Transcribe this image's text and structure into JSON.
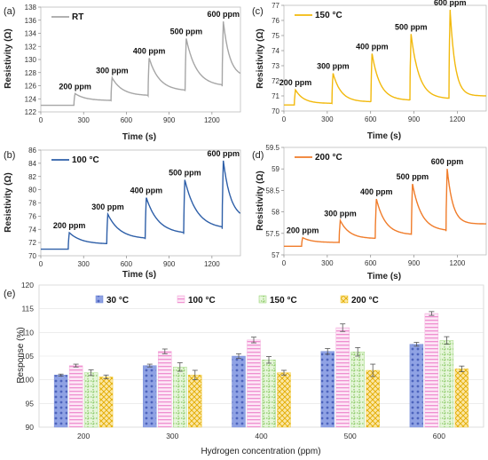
{
  "panels": [
    {
      "label": "(a)",
      "legend": "RT",
      "color": "#a6a6a6",
      "xlabel": "Time (s)",
      "ylabel": "Resistivity (Ω)",
      "xlim": [
        0,
        1400
      ],
      "ylim": [
        122,
        138
      ],
      "xticks": [
        0,
        300,
        600,
        900,
        1200
      ],
      "yticks": [
        122,
        124,
        126,
        128,
        130,
        132,
        134,
        136,
        138
      ],
      "baseline": 123,
      "recovery": 127.3,
      "peaks": [
        {
          "t": 240,
          "v": 124.8
        },
        {
          "t": 500,
          "v": 127.2
        },
        {
          "t": 760,
          "v": 130.2
        },
        {
          "t": 1020,
          "v": 133.2
        },
        {
          "t": 1280,
          "v": 135.8
        }
      ],
      "annotations": [
        "200 ppm",
        "300 ppm",
        "400 ppm",
        "500 ppm",
        "600 ppm"
      ]
    },
    {
      "label": "(b)",
      "legend": "100 °C",
      "color": "#2e5fa8",
      "xlabel": "Time (s)",
      "ylabel": "Resistivity (Ω)",
      "xlim": [
        0,
        1400
      ],
      "ylim": [
        70,
        86
      ],
      "xticks": [
        0,
        300,
        600,
        900,
        1200
      ],
      "yticks": [
        70,
        72,
        74,
        76,
        78,
        80,
        82,
        84,
        86
      ],
      "baseline": 71,
      "recovery": 75.5,
      "peaks": [
        {
          "t": 200,
          "v": 73.5
        },
        {
          "t": 470,
          "v": 76.3
        },
        {
          "t": 740,
          "v": 78.8
        },
        {
          "t": 1010,
          "v": 81.5
        },
        {
          "t": 1280,
          "v": 84.4
        }
      ],
      "annotations": [
        "200 ppm",
        "300 ppm",
        "400 ppm",
        "500 ppm",
        "600 ppm"
      ]
    },
    {
      "label": "(c)",
      "legend": "150 °C",
      "color": "#f2b90c",
      "xlabel": "Time (s)",
      "ylabel": "Resistivity (Ω)",
      "xlim": [
        0,
        1400
      ],
      "ylim": [
        70,
        77
      ],
      "xticks": [
        0,
        300,
        600,
        900,
        1200
      ],
      "yticks": [
        70,
        71,
        72,
        73,
        74,
        75,
        76,
        77
      ],
      "baseline": 70.4,
      "recovery": 71.0,
      "peaks": [
        {
          "t": 80,
          "v": 71.4
        },
        {
          "t": 340,
          "v": 72.5
        },
        {
          "t": 610,
          "v": 73.8
        },
        {
          "t": 880,
          "v": 75.1
        },
        {
          "t": 1150,
          "v": 76.7
        }
      ],
      "annotations": [
        "200 ppm",
        "300 ppm",
        "400 ppm",
        "500 ppm",
        "600 ppm"
      ]
    },
    {
      "label": "(d)",
      "legend": "200 °C",
      "color": "#f07c2a",
      "xlabel": "Time (s)",
      "ylabel": "Resistivity (Ω)",
      "xlim": [
        0,
        1400
      ],
      "ylim": [
        57,
        59.5
      ],
      "xticks": [
        0,
        300,
        600,
        900,
        1200
      ],
      "yticks": [
        57,
        57.5,
        58,
        58.5,
        59,
        59.5
      ],
      "baseline": 57.2,
      "recovery": 57.72,
      "peaks": [
        {
          "t": 130,
          "v": 57.4
        },
        {
          "t": 390,
          "v": 57.8
        },
        {
          "t": 640,
          "v": 58.3
        },
        {
          "t": 890,
          "v": 58.65
        },
        {
          "t": 1130,
          "v": 59.0
        }
      ],
      "annotations": [
        "200 ppm",
        "300 ppm",
        "400 ppm",
        "500 ppm",
        "600 ppm"
      ]
    }
  ],
  "chart_data": [
    {
      "type": "line",
      "title": "(a)",
      "xlabel": "Time (s)",
      "ylabel": "Resistivity (Ω)",
      "series": [
        {
          "name": "RT",
          "x": [
            0,
            230,
            240,
            480,
            500,
            750,
            760,
            1010,
            1020,
            1270,
            1280,
            1400
          ],
          "y": [
            123,
            123.2,
            124.8,
            125.2,
            127.2,
            125.8,
            130.2,
            126.5,
            133.2,
            126.9,
            135.8,
            127.3
          ]
        }
      ]
    },
    {
      "type": "line",
      "title": "(b)",
      "xlabel": "Time (s)",
      "ylabel": "Resistivity (Ω)",
      "series": [
        {
          "name": "100 °C",
          "x": [
            0,
            190,
            200,
            460,
            470,
            730,
            740,
            1000,
            1010,
            1270,
            1280,
            1400
          ],
          "y": [
            71,
            71.2,
            73.5,
            72.6,
            76.3,
            73.2,
            78.8,
            73.8,
            81.5,
            74.4,
            84.4,
            75.5
          ]
        }
      ]
    },
    {
      "type": "line",
      "title": "(c)",
      "xlabel": "Time (s)",
      "ylabel": "Resistivity (Ω)",
      "series": [
        {
          "name": "150 °C",
          "x": [
            0,
            70,
            80,
            330,
            340,
            600,
            610,
            870,
            880,
            1140,
            1150,
            1400
          ],
          "y": [
            70.4,
            70.5,
            71.4,
            70.7,
            72.5,
            70.8,
            73.8,
            70.9,
            75.1,
            71.0,
            76.7,
            71.0
          ]
        }
      ]
    },
    {
      "type": "line",
      "title": "(d)",
      "xlabel": "Time (s)",
      "ylabel": "Resistivity (Ω)",
      "series": [
        {
          "name": "200 °C",
          "x": [
            0,
            120,
            130,
            380,
            390,
            630,
            640,
            880,
            890,
            1120,
            1130,
            1400
          ],
          "y": [
            57.2,
            57.2,
            57.4,
            57.3,
            57.8,
            57.5,
            58.3,
            57.55,
            58.65,
            57.6,
            59.0,
            57.72
          ]
        }
      ]
    },
    {
      "type": "bar",
      "title": "(e)",
      "xlabel": "Hydrogen concentration (ppm)",
      "ylabel": "Response (%)",
      "ylim": [
        90,
        120
      ],
      "yticks": [
        90,
        95,
        100,
        105,
        110,
        115,
        120
      ],
      "categories": [
        "200",
        "300",
        "400",
        "500",
        "600"
      ],
      "series": [
        {
          "name": "30 °C",
          "color": "#6f86d6",
          "values": [
            101.0,
            103.0,
            105.0,
            106.0,
            107.5
          ],
          "errors": [
            0.2,
            0.3,
            0.5,
            0.6,
            0.4
          ]
        },
        {
          "name": "100 °C",
          "color": "#f2a0d6",
          "values": [
            103.0,
            106.0,
            108.4,
            111.0,
            114.0
          ],
          "errors": [
            0.3,
            0.5,
            0.6,
            0.8,
            0.4
          ]
        },
        {
          "name": "150 °C",
          "color": "#8fd06a",
          "values": [
            101.5,
            102.7,
            104.2,
            105.9,
            108.3
          ],
          "errors": [
            0.6,
            0.9,
            0.7,
            0.9,
            0.8
          ]
        },
        {
          "name": "200 °C",
          "color": "#f0c419",
          "values": [
            100.6,
            101.0,
            101.5,
            102.0,
            102.3
          ],
          "errors": [
            0.4,
            1.0,
            0.5,
            1.3,
            0.6
          ]
        }
      ]
    }
  ]
}
